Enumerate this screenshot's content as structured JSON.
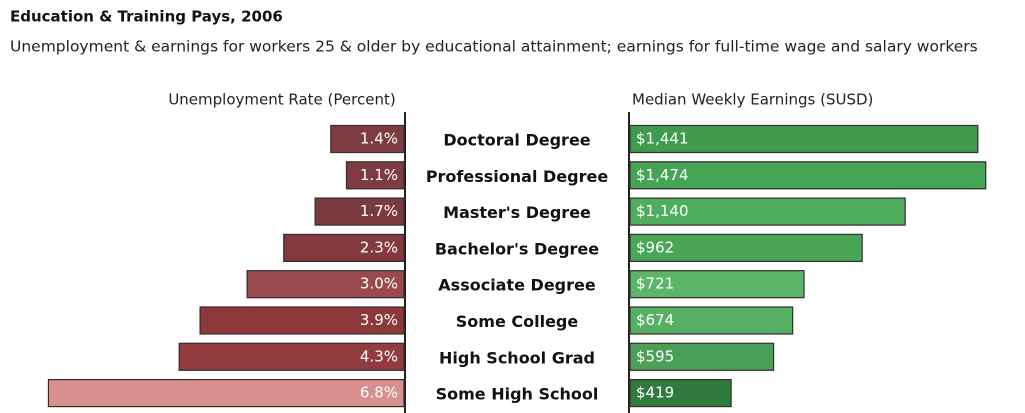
{
  "title": "Education & Training Pays, 2006",
  "subtitle": "Unemployment & earnings for workers 25 & older by educational attainment; earnings for full-time wage and salary workers",
  "chart_data": [
    {
      "type": "bar",
      "orientation": "horizontal",
      "direction": "left",
      "x_label": "Unemployment Rate (Percent)",
      "categories": [
        "Doctoral Degree",
        "Professional Degree",
        "Master's Degree",
        "Bachelor's Degree",
        "Associate Degree",
        "Some College",
        "High School Grad",
        "Some High School"
      ],
      "values": [
        1.4,
        1.1,
        1.7,
        2.3,
        3.0,
        3.9,
        4.3,
        6.8
      ],
      "value_labels": [
        "1.4%",
        "1.1%",
        "1.7%",
        "2.3%",
        "3.0%",
        "3.9%",
        "4.3%",
        "6.8%"
      ],
      "colors": [
        "#7e3c42",
        "#7e3c42",
        "#7a3a40",
        "#83393e",
        "#9a4a4e",
        "#8c383c",
        "#923c40",
        "#d8908e"
      ],
      "xlim": [
        0,
        7
      ]
    },
    {
      "type": "bar",
      "orientation": "horizontal",
      "direction": "right",
      "x_label": "Median Weekly Earnings (SUSD)",
      "values": [
        1441,
        1474,
        1140,
        962,
        721,
        674,
        595,
        419
      ],
      "value_labels": [
        "$1,441",
        "$1,474",
        "$1,140",
        "$962",
        "$721",
        "$674",
        "$595",
        "$419"
      ],
      "colors": [
        "#3f9c4e",
        "#45a455",
        "#4fae5e",
        "#48a656",
        "#5cb66a",
        "#55b063",
        "#4aa058",
        "#2f7a3c"
      ],
      "xlim": [
        0,
        1500
      ]
    }
  ]
}
